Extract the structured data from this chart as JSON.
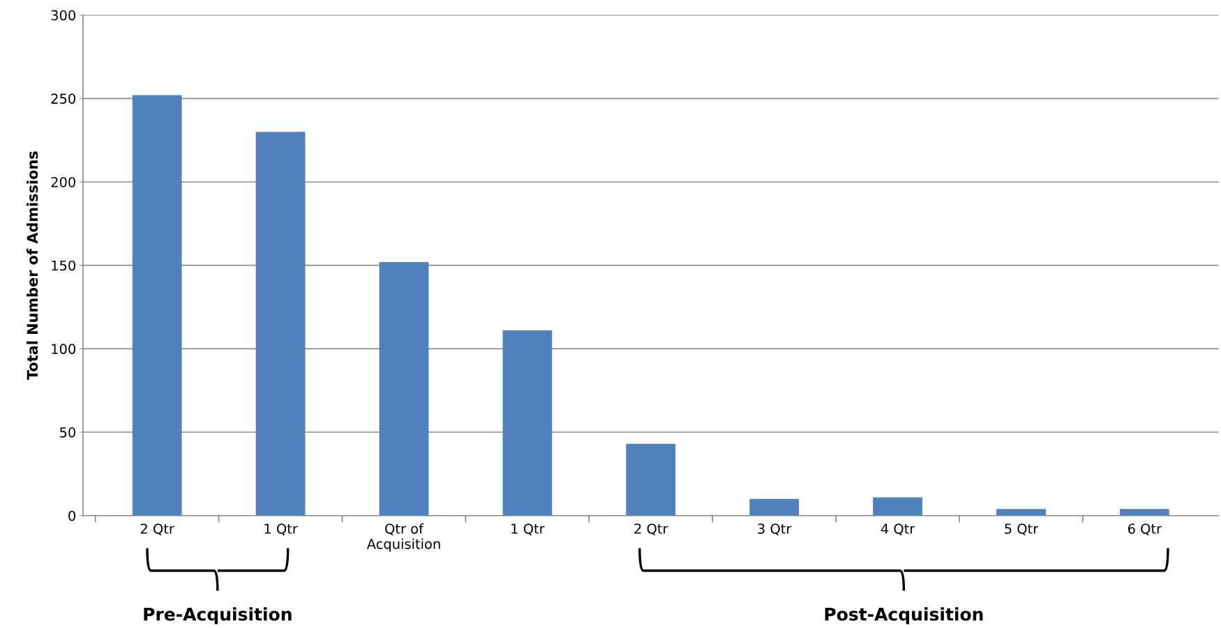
{
  "chart_data": {
    "type": "bar",
    "ylabel": "Total Number of Admissions",
    "categories": [
      "2 Qtr",
      "1 Qtr",
      "Qtr of\nAcquisition",
      "1 Qtr",
      "2 Qtr",
      "3 Qtr",
      "4 Qtr",
      "5 Qtr",
      "6 Qtr"
    ],
    "values": [
      252,
      230,
      152,
      111,
      43,
      10,
      11,
      4,
      4
    ],
    "color": "#4f81bd",
    "ylim": [
      0,
      300
    ],
    "yticks": [
      0,
      50,
      100,
      150,
      200,
      250,
      300
    ],
    "grid": "y",
    "annotations": [
      "Pre-Acquisition",
      "Post-Acquisition"
    ]
  }
}
